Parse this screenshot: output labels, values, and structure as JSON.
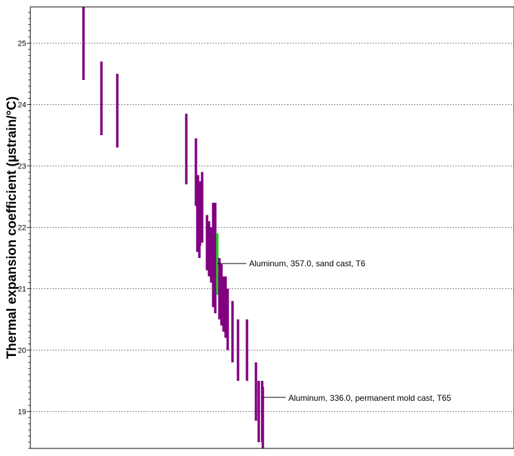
{
  "chart_data": {
    "type": "floating-bar",
    "ylabel": "Thermal expansion coefficient (µstrain/°C)",
    "xlabel": "",
    "ylim": [
      18.35,
      25.6
    ],
    "yticks": [
      19,
      20,
      21,
      22,
      23,
      24,
      25
    ],
    "grid": "horizontal-dashed",
    "colors": {
      "default": "#800080",
      "highlight": "#22cc22"
    },
    "bars": [
      {
        "x": 1,
        "low": 24.4,
        "high": 25.6
      },
      {
        "x": 2,
        "low": 23.5,
        "high": 24.7
      },
      {
        "x": 3,
        "low": 23.3,
        "high": 24.5
      },
      {
        "x": 4,
        "low": 22.7,
        "high": 23.85
      },
      {
        "x": 5,
        "low": 22.35,
        "high": 23.45
      },
      {
        "x": 6,
        "low": 22.1,
        "high": 22.85
      },
      {
        "x": 7,
        "low": 21.7,
        "high": 22.75
      },
      {
        "x": 8,
        "low": 21.75,
        "high": 22.9
      },
      {
        "x": 9,
        "low": 21.6,
        "high": 22.6
      },
      {
        "x": 10,
        "low": 21.5,
        "high": 22.5
      },
      {
        "x": 11,
        "low": 21.3,
        "high": 22.2
      },
      {
        "x": 12,
        "low": 21.2,
        "high": 22.1
      },
      {
        "x": 13,
        "low": 21.1,
        "high": 22.0
      },
      {
        "x": 14,
        "low": 20.7,
        "high": 22.4
      },
      {
        "x": 15,
        "low": 20.6,
        "high": 22.4
      },
      {
        "x": 16,
        "low": 20.9,
        "high": 21.9,
        "highlight": true,
        "label": "Aluminum, 357.0, sand cast, T6"
      },
      {
        "x": 17,
        "low": 20.5,
        "high": 21.5
      },
      {
        "x": 18,
        "low": 20.4,
        "high": 21.4
      },
      {
        "x": 19,
        "low": 20.3,
        "high": 21.2
      },
      {
        "x": 20,
        "low": 20.2,
        "high": 21.2
      },
      {
        "x": 21,
        "low": 20.0,
        "high": 21.0
      },
      {
        "x": 22,
        "low": 19.8,
        "high": 20.8
      },
      {
        "x": 23,
        "low": 19.5,
        "high": 20.5
      },
      {
        "x": 24,
        "low": 19.5,
        "high": 20.5
      },
      {
        "x": 25,
        "low": 18.85,
        "high": 19.8
      },
      {
        "x": 26,
        "low": 18.5,
        "high": 19.5
      },
      {
        "x": 27,
        "low": 18.5,
        "high": 19.5
      },
      {
        "x": 28,
        "low": 18.4,
        "high": 19.4,
        "label": "Aluminum, 336.0, permanent mold cast, T65"
      }
    ]
  }
}
